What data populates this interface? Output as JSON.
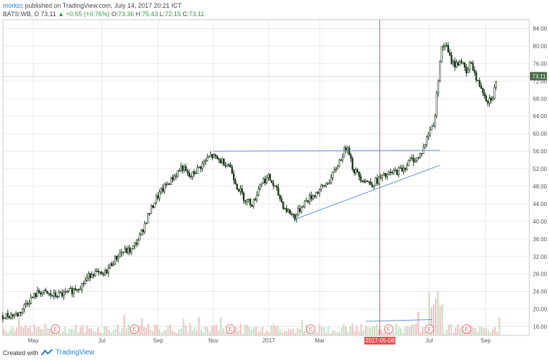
{
  "header": {
    "author": "moritzc",
    "published": "published on TradingView.com, July 14, 2017 20:21 ICT",
    "symbol": "BATS:WB, D",
    "last": "73.11",
    "change_arrow": "▲",
    "change": "+0.55 (+0.76%)",
    "o_label": "O:",
    "o": "73.36",
    "h_label": "H:",
    "h": "75.43",
    "l_label": "L:",
    "l": "72.15",
    "c_label": "C:",
    "c": "73.11"
  },
  "footer": {
    "created": "Created with",
    "brand": "TradingView",
    "logo_icon": "tradingview-logo-icon"
  },
  "colors": {
    "candle": "#1d3a1d",
    "grid": "#e8e8e8",
    "trendline": "#5b8fd9",
    "vline": "#e85050",
    "price_tag": "#4a6b4a",
    "volume_up": "#c9e2c9",
    "volume_down": "#efc6c6",
    "earnings": "#e86a6a"
  },
  "chart_data": {
    "type": "candlestick",
    "title": "",
    "y_ticks": [
      "84.00",
      "80.00",
      "76.00",
      "72.00",
      "68.00",
      "64.00",
      "60.00",
      "56.00",
      "52.00",
      "48.00",
      "44.00",
      "40.00",
      "36.00",
      "32.00",
      "28.00",
      "24.00",
      "20.00",
      "16.00"
    ],
    "x_ticks": [
      "May",
      "Jul",
      "Sep",
      "Nov",
      "2017",
      "Mar",
      "2017-05-08",
      "Jul",
      "Sep"
    ],
    "ylim": [
      14,
      86
    ],
    "current_price_label": "73.11",
    "current_price": 73.11,
    "vline_date_label": "2017-05-08",
    "earnings_marker": "E",
    "earnings_count": 8,
    "trendlines": [
      {
        "name": "resistance",
        "from": [
          0.4,
          56.0
        ],
        "to": [
          0.83,
          56.2
        ]
      },
      {
        "name": "support",
        "from": [
          0.555,
          40.5
        ],
        "to": [
          0.83,
          52.8
        ]
      },
      {
        "name": "volume-line",
        "from": [
          0.69,
          17.2
        ],
        "to": [
          0.815,
          17.6
        ]
      }
    ],
    "series": [
      {
        "name": "price",
        "keypoints": [
          [
            0.0,
            18.5
          ],
          [
            0.03,
            18.8
          ],
          [
            0.045,
            21.5
          ],
          [
            0.07,
            24.0
          ],
          [
            0.095,
            23.0
          ],
          [
            0.12,
            23.5
          ],
          [
            0.15,
            25.5
          ],
          [
            0.17,
            28.5
          ],
          [
            0.19,
            27.5
          ],
          [
            0.21,
            31.0
          ],
          [
            0.225,
            33.0
          ],
          [
            0.245,
            33.5
          ],
          [
            0.26,
            36.5
          ],
          [
            0.275,
            41.0
          ],
          [
            0.29,
            45.0
          ],
          [
            0.305,
            47.5
          ],
          [
            0.32,
            49.5
          ],
          [
            0.34,
            52.5
          ],
          [
            0.355,
            50.0
          ],
          [
            0.375,
            52.5
          ],
          [
            0.395,
            55.0
          ],
          [
            0.41,
            54.0
          ],
          [
            0.43,
            53.0
          ],
          [
            0.445,
            48.0
          ],
          [
            0.46,
            45.0
          ],
          [
            0.475,
            44.0
          ],
          [
            0.49,
            49.0
          ],
          [
            0.505,
            50.0
          ],
          [
            0.52,
            47.0
          ],
          [
            0.535,
            43.0
          ],
          [
            0.555,
            41.0
          ],
          [
            0.57,
            44.0
          ],
          [
            0.59,
            46.0
          ],
          [
            0.61,
            48.0
          ],
          [
            0.625,
            50.0
          ],
          [
            0.64,
            54.0
          ],
          [
            0.655,
            57.5
          ],
          [
            0.665,
            52.0
          ],
          [
            0.68,
            50.0
          ],
          [
            0.7,
            48.5
          ],
          [
            0.72,
            50.0
          ],
          [
            0.74,
            51.0
          ],
          [
            0.76,
            52.0
          ],
          [
            0.775,
            54.0
          ],
          [
            0.79,
            54.5
          ],
          [
            0.8,
            57.0
          ],
          [
            0.81,
            60.5
          ],
          [
            0.82,
            63.0
          ],
          [
            0.825,
            70.0
          ],
          [
            0.832,
            79.0
          ],
          [
            0.84,
            80.5
          ],
          [
            0.85,
            77.0
          ],
          [
            0.86,
            75.5
          ],
          [
            0.87,
            77.0
          ],
          [
            0.88,
            73.5
          ],
          [
            0.89,
            76.5
          ],
          [
            0.9,
            72.0
          ],
          [
            0.91,
            70.5
          ],
          [
            0.92,
            67.5
          ],
          [
            0.93,
            68.5
          ],
          [
            0.94,
            73.0
          ]
        ]
      }
    ]
  }
}
